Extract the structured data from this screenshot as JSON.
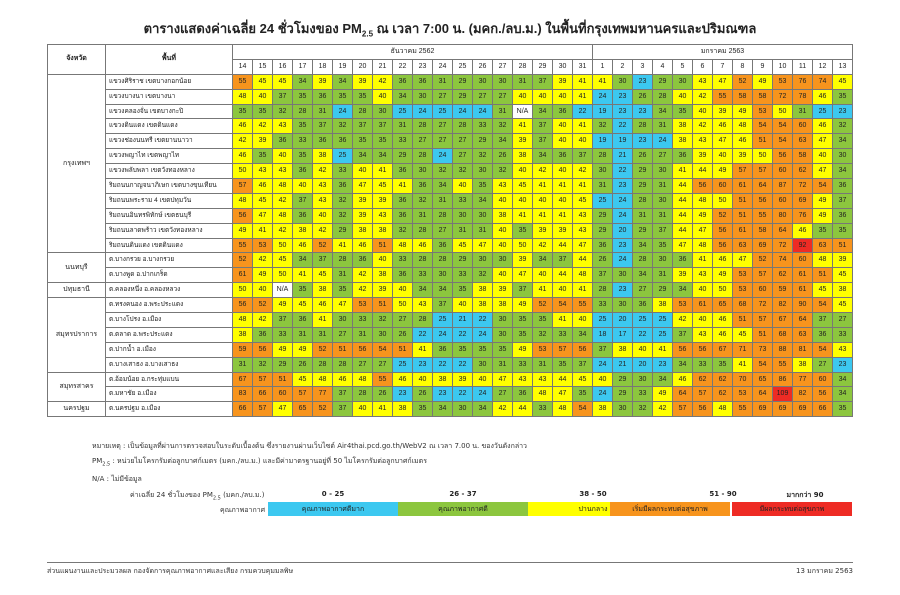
{
  "title": {
    "pre": "ตารางแสดงค่าเฉลี่ย 24 ชั่วโมงของ PM",
    "sub": "2.5",
    "post": " ณ เวลา 7:00 น. (มคก./ลบ.ม.) ในพื้นที่กรุงเทพมหานครและปริมณฑล"
  },
  "header": {
    "province": "จังหวัด",
    "station": "พื้นที่",
    "month1": "ธันวาคม 2562",
    "month2": "มกราคม 2563"
  },
  "days": [
    "14",
    "15",
    "16",
    "17",
    "18",
    "19",
    "20",
    "21",
    "22",
    "23",
    "24",
    "25",
    "26",
    "27",
    "28",
    "29",
    "30",
    "31",
    "1",
    "2",
    "3",
    "4",
    "5",
    "6",
    "7",
    "8",
    "9",
    "10",
    "11",
    "12",
    "13"
  ],
  "colors": {
    "q1": "#3cc8f0",
    "q2": "#8cc63e",
    "q3": "#ffff00",
    "q4": "#f7941d",
    "q5": "#ee2b24"
  },
  "chart_data": {
    "type": "table",
    "groups": [
      {
        "province": "กรุงเทพฯ",
        "rows": [
          {
            "station": "แขวงศิริราช เขตบางกอกน้อย",
            "values": [
              "55",
              "45",
              "45",
              "34",
              "39",
              "34",
              "39",
              "42",
              "36",
              "36",
              "31",
              "29",
              "30",
              "30",
              "31",
              "37",
              "39",
              "41",
              "41",
              "30",
              "23",
              "29",
              "30",
              "43",
              "47",
              "52",
              "49",
              "53",
              "76",
              "74",
              "45"
            ]
          },
          {
            "station": "แขวงบางนา เขตบางนา",
            "values": [
              "48",
              "40",
              "37",
              "35",
              "36",
              "35",
              "35",
              "40",
              "34",
              "30",
              "27",
              "29",
              "27",
              "27",
              "40",
              "40",
              "40",
              "41",
              "24",
              "23",
              "26",
              "28",
              "40",
              "42",
              "55",
              "58",
              "58",
              "72",
              "78",
              "46",
              "35"
            ]
          },
          {
            "station": "แขวงคลองจั่น เขตบางกะปิ",
            "values": [
              "35",
              "35",
              "32",
              "28",
              "31",
              "24",
              "28",
              "30",
              "25",
              "24",
              "25",
              "24",
              "24",
              "31",
              "N/A",
              "34",
              "36",
              "22",
              "19",
              "23",
              "23",
              "34",
              "35",
              "40",
              "39",
              "49",
              "53",
              "50",
              "31",
              "25",
              "23"
            ]
          },
          {
            "station": "แขวงดินแดง เขตดินแดง",
            "values": [
              "46",
              "42",
              "43",
              "35",
              "37",
              "32",
              "37",
              "37",
              "31",
              "28",
              "27",
              "28",
              "33",
              "32",
              "41",
              "37",
              "40",
              "41",
              "32",
              "22",
              "28",
              "31",
              "38",
              "42",
              "46",
              "48",
              "54",
              "54",
              "60",
              "46",
              "32"
            ]
          },
          {
            "station": "แขวงช่องนนทรี เขตยานนาวา",
            "values": [
              "42",
              "39",
              "36",
              "33",
              "36",
              "36",
              "35",
              "35",
              "33",
              "27",
              "27",
              "27",
              "29",
              "34",
              "39",
              "37",
              "40",
              "40",
              "19",
              "19",
              "23",
              "24",
              "38",
              "43",
              "47",
              "46",
              "51",
              "54",
              "63",
              "47",
              "34"
            ]
          },
          {
            "station": "แขวงพญาไท เขตพญาไท",
            "values": [
              "46",
              "35",
              "40",
              "35",
              "38",
              "25",
              "34",
              "34",
              "29",
              "28",
              "24",
              "27",
              "32",
              "26",
              "38",
              "34",
              "36",
              "37",
              "28",
              "21",
              "26",
              "27",
              "36",
              "39",
              "40",
              "39",
              "50",
              "56",
              "58",
              "40",
              "30"
            ]
          },
          {
            "station": "แขวงพลับพลา เขตวังทองหลาง",
            "values": [
              "50",
              "43",
              "43",
              "36",
              "42",
              "33",
              "40",
              "41",
              "36",
              "30",
              "32",
              "32",
              "30",
              "32",
              "40",
              "42",
              "40",
              "42",
              "30",
              "22",
              "29",
              "30",
              "41",
              "44",
              "49",
              "57",
              "57",
              "60",
              "62",
              "47",
              "34"
            ]
          },
          {
            "station": "ริมถนนกาญจนาภิเษก เขตบางขุนเทียน",
            "values": [
              "57",
              "46",
              "48",
              "40",
              "43",
              "36",
              "47",
              "45",
              "41",
              "36",
              "34",
              "40",
              "35",
              "43",
              "45",
              "41",
              "41",
              "41",
              "31",
              "23",
              "29",
              "31",
              "44",
              "56",
              "60",
              "61",
              "64",
              "87",
              "72",
              "54",
              "36"
            ]
          },
          {
            "station": "ริมถนนพระราม 4 เขตปทุมวัน",
            "values": [
              "48",
              "45",
              "42",
              "37",
              "43",
              "32",
              "39",
              "39",
              "36",
              "32",
              "31",
              "33",
              "34",
              "40",
              "40",
              "40",
              "40",
              "45",
              "25",
              "24",
              "28",
              "30",
              "44",
              "48",
              "50",
              "51",
              "56",
              "60",
              "69",
              "49",
              "37"
            ]
          },
          {
            "station": "ริมถนนอินทรพิทักษ์ เขตธนบุรี",
            "values": [
              "56",
              "47",
              "48",
              "36",
              "40",
              "32",
              "39",
              "43",
              "36",
              "31",
              "28",
              "30",
              "30",
              "38",
              "41",
              "41",
              "41",
              "43",
              "29",
              "24",
              "31",
              "31",
              "44",
              "49",
              "52",
              "51",
              "55",
              "80",
              "76",
              "49",
              "36"
            ]
          },
          {
            "station": "ริมถนนลาดพร้าว เขตวังทองหลาง",
            "values": [
              "49",
              "41",
              "42",
              "38",
              "42",
              "29",
              "38",
              "38",
              "32",
              "28",
              "27",
              "31",
              "31",
              "40",
              "35",
              "39",
              "39",
              "43",
              "29",
              "20",
              "29",
              "37",
              "44",
              "47",
              "56",
              "61",
              "58",
              "64",
              "46",
              "35",
              "35"
            ]
          },
          {
            "station": "ริมถนนดินแดง เขตดินแดง",
            "values": [
              "55",
              "53",
              "50",
              "46",
              "52",
              "41",
              "46",
              "51",
              "48",
              "46",
              "36",
              "45",
              "47",
              "40",
              "50",
              "42",
              "44",
              "47",
              "36",
              "23",
              "34",
              "35",
              "47",
              "48",
              "56",
              "63",
              "69",
              "72",
              "92",
              "63",
              "51"
            ]
          }
        ]
      },
      {
        "province": "นนทบุรี",
        "rows": [
          {
            "station": "ต.บางกรวย อ.บางกรวย",
            "values": [
              "52",
              "42",
              "45",
              "34",
              "37",
              "28",
              "36",
              "40",
              "33",
              "28",
              "28",
              "29",
              "30",
              "30",
              "39",
              "34",
              "37",
              "44",
              "26",
              "24",
              "28",
              "30",
              "36",
              "41",
              "46",
              "47",
              "52",
              "74",
              "60",
              "48",
              "39"
            ]
          },
          {
            "station": "ต.บางพูด อ.ปากเกร็ด",
            "values": [
              "61",
              "49",
              "50",
              "41",
              "45",
              "31",
              "42",
              "38",
              "36",
              "33",
              "30",
              "33",
              "32",
              "40",
              "47",
              "40",
              "44",
              "48",
              "37",
              "30",
              "34",
              "31",
              "39",
              "43",
              "49",
              "53",
              "57",
              "62",
              "61",
              "51",
              "45"
            ]
          }
        ]
      },
      {
        "province": "ปทุมธานี",
        "rows": [
          {
            "station": "ต.คลองหนึ่ง อ.คลองหลวง",
            "values": [
              "50",
              "40",
              "N/A",
              "35",
              "38",
              "35",
              "42",
              "39",
              "40",
              "34",
              "34",
              "35",
              "38",
              "39",
              "37",
              "41",
              "40",
              "41",
              "28",
              "23",
              "27",
              "29",
              "34",
              "40",
              "50",
              "53",
              "60",
              "59",
              "61",
              "45",
              "38"
            ]
          }
        ]
      },
      {
        "province": "สมุทรปราการ",
        "rows": [
          {
            "station": "ต.ทรงคนอง อ.พระประแดง",
            "values": [
              "56",
              "52",
              "49",
              "45",
              "46",
              "47",
              "53",
              "51",
              "50",
              "43",
              "37",
              "40",
              "38",
              "38",
              "49",
              "52",
              "54",
              "55",
              "33",
              "30",
              "36",
              "38",
              "53",
              "61",
              "65",
              "68",
              "72",
              "82",
              "90",
              "54",
              "45"
            ]
          },
          {
            "station": "ต.บางโปรง อ.เมือง",
            "values": [
              "48",
              "42",
              "37",
              "36",
              "41",
              "30",
              "33",
              "32",
              "27",
              "28",
              "25",
              "21",
              "22",
              "30",
              "35",
              "35",
              "41",
              "40",
              "25",
              "20",
              "25",
              "25",
              "42",
              "40",
              "46",
              "51",
              "57",
              "67",
              "64",
              "37",
              "27"
            ]
          },
          {
            "station": "ต.ตลาด อ.พระประแดง",
            "values": [
              "38",
              "36",
              "33",
              "31",
              "31",
              "27",
              "31",
              "30",
              "26",
              "22",
              "24",
              "22",
              "24",
              "30",
              "35",
              "32",
              "33",
              "34",
              "18",
              "17",
              "22",
              "25",
              "37",
              "43",
              "46",
              "45",
              "51",
              "68",
              "63",
              "36",
              "33"
            ]
          },
          {
            "station": "ต.ปากน้ำ อ.เมือง",
            "values": [
              "59",
              "56",
              "49",
              "49",
              "52",
              "51",
              "56",
              "54",
              "51",
              "41",
              "36",
              "35",
              "35",
              "35",
              "49",
              "53",
              "57",
              "56",
              "37",
              "38",
              "40",
              "41",
              "56",
              "56",
              "67",
              "71",
              "73",
              "88",
              "81",
              "54",
              "43"
            ]
          },
          {
            "station": "ต.บางเสาธง อ.บางเสาธง",
            "values": [
              "31",
              "32",
              "29",
              "26",
              "28",
              "28",
              "27",
              "27",
              "25",
              "23",
              "22",
              "22",
              "30",
              "31",
              "33",
              "31",
              "35",
              "37",
              "24",
              "21",
              "20",
              "23",
              "34",
              "33",
              "35",
              "41",
              "54",
              "55",
              "38",
              "27",
              "23"
            ]
          }
        ]
      },
      {
        "province": "สมุทรสาคร",
        "rows": [
          {
            "station": "ต.อ้อมน้อย อ.กระทุ่มแบน",
            "values": [
              "67",
              "57",
              "51",
              "45",
              "48",
              "46",
              "48",
              "55",
              "46",
              "40",
              "38",
              "39",
              "40",
              "47",
              "43",
              "43",
              "44",
              "45",
              "40",
              "29",
              "30",
              "34",
              "46",
              "62",
              "62",
              "70",
              "65",
              "86",
              "77",
              "60",
              "34"
            ]
          },
          {
            "station": "ต.มหาชัย อ.เมือง",
            "values": [
              "83",
              "66",
              "60",
              "57",
              "77",
              "37",
              "28",
              "26",
              "23",
              "26",
              "23",
              "22",
              "24",
              "27",
              "36",
              "48",
              "47",
              "35",
              "24",
              "29",
              "33",
              "49",
              "64",
              "57",
              "62",
              "53",
              "64",
              "109",
              "82",
              "56",
              "34"
            ]
          }
        ]
      },
      {
        "province": "นครปฐม",
        "rows": [
          {
            "station": "ต.นครปฐม อ.เมือง",
            "values": [
              "66",
              "57",
              "47",
              "65",
              "52",
              "37",
              "40",
              "41",
              "38",
              "35",
              "34",
              "30",
              "34",
              "42",
              "44",
              "33",
              "48",
              "54",
              "38",
              "30",
              "32",
              "42",
              "57",
              "56",
              "48",
              "55",
              "69",
              "69",
              "69",
              "66",
              "35"
            ]
          }
        ]
      }
    ]
  },
  "notes": {
    "line1": "หมายเหตุ : เป็นข้อมูลที่ผ่านการตรวจสอบในระดับเบื้องต้น ซึ่งรายงานผ่านเว็บไซต์ Air4thai.pcd.go.th/WebV2 ณ เวลา 7.00 น. ของวันดังกล่าว",
    "line2_pre": "PM",
    "line2_sub": "2.5",
    "line2_post": " : หน่วยไมโครกรัมต่อลูกบาศก์เมตร (มคก./ลบ.ม.) และมีค่ามาตรฐานอยู่ที่ 50 ไมโครกรัมต่อลูกบาศก์เมตร",
    "line3": "N/A : ไม่มีข้อมูล"
  },
  "legend": {
    "label1_pre": "ค่าเฉลี่ย 24 ชั่วโมงของ PM",
    "label1_sub": "2.5",
    "label1_post": " (มคก./ลบ.ม.)",
    "label2": "คุณภาพอากาศ",
    "ranges": [
      "0 - 25",
      "26 - 37",
      "38 - 50",
      "51 - 90",
      "มากกว่า 90"
    ],
    "levels": [
      "คุณภาพอากาศดีมาก",
      "คุณภาพอากาศดี",
      "ปานกลาง",
      "เริ่มมีผลกระทบต่อสุขภาพ",
      "มีผลกระทบต่อสุขภาพ"
    ]
  },
  "footer": {
    "left": "ส่วนแผนงานและประมวลผล กองจัดการคุณภาพอากาศและเสียง กรมควบคุมมลพิษ",
    "right": "13 มกราคม 2563"
  }
}
